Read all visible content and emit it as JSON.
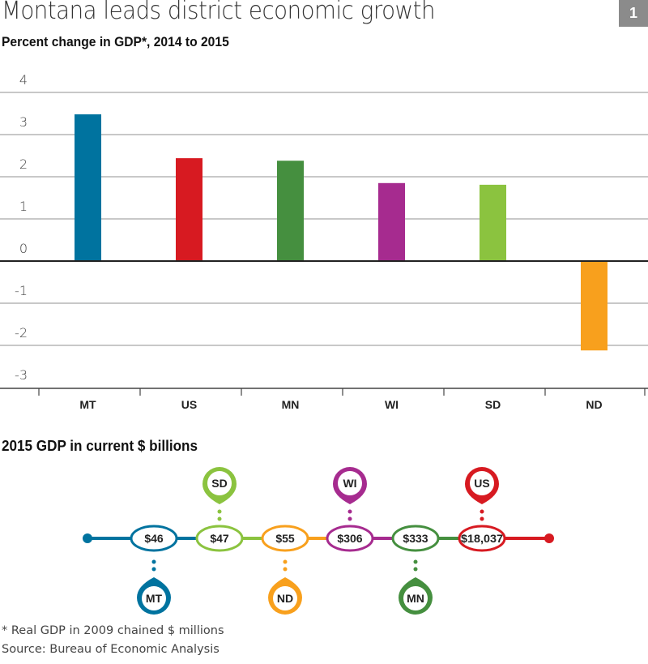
{
  "header": {
    "title": "Montana leads district economic growth",
    "badge": "1"
  },
  "chart_data": [
    {
      "type": "bar",
      "title": "Percent change in GDP*, 2014 to 2015",
      "xlabel": "",
      "ylabel": "",
      "categories": [
        "MT",
        "US",
        "MN",
        "WI",
        "SD",
        "ND"
      ],
      "values": [
        3.48,
        2.44,
        2.38,
        1.85,
        1.81,
        -2.12
      ],
      "colors": [
        "#00739f",
        "#d71a21",
        "#458f3f",
        "#a62b8f",
        "#8bc33f",
        "#f8a01d"
      ],
      "ylim": [
        -3,
        4
      ],
      "yticks": [
        "4",
        "3",
        "2",
        "1",
        "0",
        "-1",
        "-2",
        "-3"
      ],
      "grid": true,
      "legend": "none"
    },
    {
      "type": "table",
      "title": "2015 GDP in current $ billions",
      "items": [
        {
          "label": "MT",
          "value": "$46",
          "color": "#00739f",
          "pin": "below"
        },
        {
          "label": "SD",
          "value": "$47",
          "color": "#8bc33f",
          "pin": "above"
        },
        {
          "label": "ND",
          "value": "$55",
          "color": "#f8a01d",
          "pin": "below"
        },
        {
          "label": "WI",
          "value": "$306",
          "color": "#a62b8f",
          "pin": "above"
        },
        {
          "label": "MN",
          "value": "$333",
          "color": "#458f3f",
          "pin": "below"
        },
        {
          "label": "US",
          "value": "$18,037",
          "color": "#d71a21",
          "pin": "above"
        }
      ]
    }
  ],
  "footer": {
    "note": "* Real GDP in 2009 chained $ millions",
    "source": "Source: Bureau of Economic Analysis"
  }
}
